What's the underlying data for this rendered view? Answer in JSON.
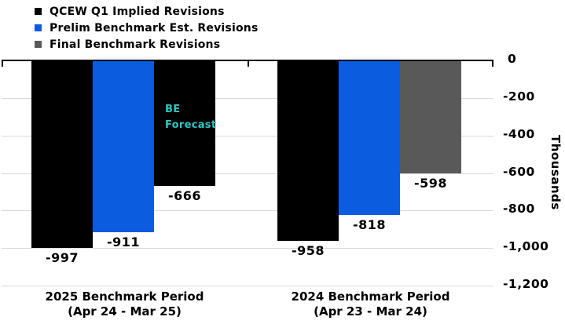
{
  "legend": {
    "items": [
      {
        "label": "QCEW Q1 Implied Revisions",
        "color": "#000000"
      },
      {
        "label": "Prelim Benchmark Est. Revisions",
        "color": "#0B5CDF"
      },
      {
        "label": "Final Benchmark Revisions",
        "color": "#595959"
      }
    ]
  },
  "chart_data": {
    "type": "bar",
    "title": "",
    "y_axis": {
      "title": "Thousands",
      "max": 0,
      "min": -1200,
      "tick_values": [
        0,
        -200,
        -400,
        -600,
        -800,
        -1000,
        -1200
      ],
      "tick_labels": [
        "0",
        "-200",
        "-400",
        "-600",
        "-800",
        "-1,000",
        "-1,200"
      ]
    },
    "categories": [
      {
        "id": "2025",
        "label_line1": "2025 Benchmark Period",
        "label_line2": "(Apr 24 - Mar 25)"
      },
      {
        "id": "2024",
        "label_line1": "2024 Benchmark Period",
        "label_line2": "(Apr 23 - Mar 24)"
      }
    ],
    "series": [
      {
        "name": "QCEW Q1 Implied Revisions",
        "color": "#000000",
        "values": [
          -997,
          -958
        ]
      },
      {
        "name": "Prelim Benchmark Est. Revisions",
        "color": "#0B5CDF",
        "values": [
          -911,
          -818
        ]
      },
      {
        "name": "Final Benchmark Revisions",
        "color": "#595959",
        "values": [
          -666,
          -598
        ],
        "forecast": {
          "category_id": "2025",
          "fill": "#000000",
          "dot_color": "#BBBBBB",
          "label_line1": "BE",
          "label_line2": "Forecast",
          "label_color": "#2DC9C3"
        }
      }
    ],
    "data_labels": [
      "-997",
      "-911",
      "-666",
      "-958",
      "-818",
      "-598"
    ],
    "grid": true,
    "gridline_color": "#D9D9D9",
    "legend_position": "top-left"
  }
}
